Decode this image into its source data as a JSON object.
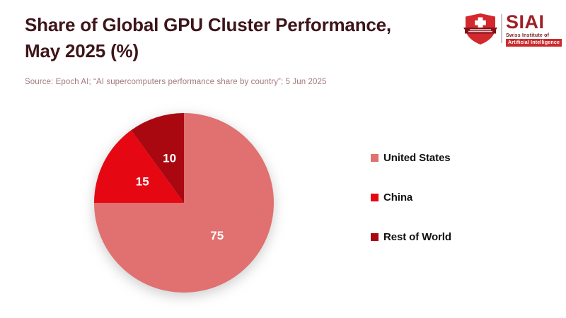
{
  "page": {
    "background": "#ffffff"
  },
  "header": {
    "title_lines": [
      "Share of Global GPU Cluster Performance,",
      "May 2025 (%)"
    ],
    "title_color": "#3e1519",
    "source_text": "Source: Epoch AI; “AI supercomputers performance share by country”; 5 Jun 2025",
    "source_color": "#a1797d"
  },
  "logo": {
    "acronym": "SIAI",
    "subtitle_line1": "Swiss Institute of",
    "subtitle_line2": "Artificial Intelligence",
    "acronym_color": "#9e2126",
    "subtitle1_color": "#6e1c1f",
    "subtitle2_bg": "#cb2b2d",
    "shield_color": "#d3282d",
    "banner_color": "#82121a",
    "cross_color": "#ffffff"
  },
  "chart_data": {
    "type": "pie",
    "title": "Share of Global GPU Cluster Performance, May 2025 (%)",
    "categories": [
      "United States",
      "China",
      "Rest of World"
    ],
    "values": [
      75,
      15,
      10
    ],
    "colors": [
      "#e17070",
      "#e50813",
      "#aa0811"
    ],
    "slice_label_color": "#ffffff",
    "start_angle_deg": 0,
    "direction": "clockwise",
    "legend_position": "right",
    "source": "Epoch AI; “AI supercomputers performance share by country”; 5 Jun 2025"
  }
}
